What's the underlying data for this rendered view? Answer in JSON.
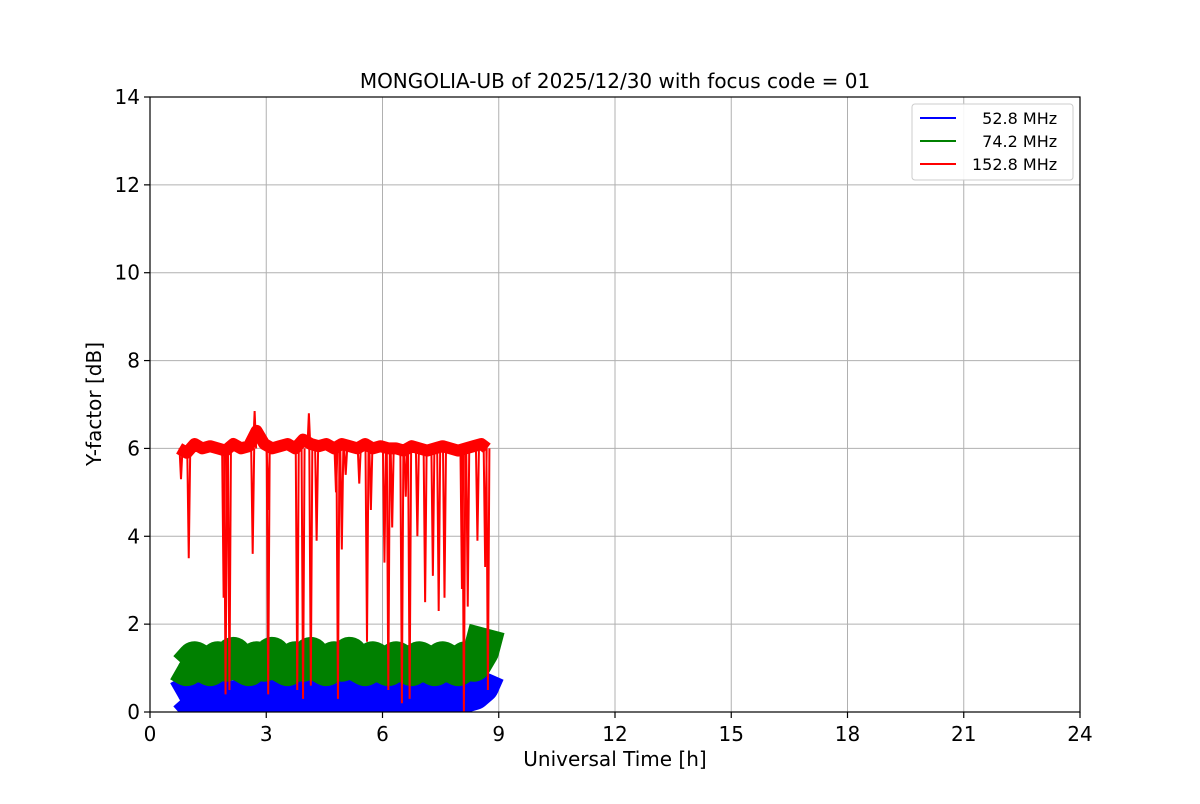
{
  "chart_data": {
    "type": "line",
    "title": "MONGOLIA-UB of 2025/12/30 with focus code = 01",
    "xlabel": "Universal Time [h]",
    "ylabel": "Y-factor [dB]",
    "xlim": [
      0,
      24
    ],
    "ylim": [
      0,
      14
    ],
    "xticks": [
      0,
      3,
      6,
      9,
      12,
      15,
      18,
      21,
      24
    ],
    "yticks": [
      0,
      2,
      4,
      6,
      8,
      10,
      12,
      14
    ],
    "xtick_labels": [
      "0",
      "3",
      "6",
      "9",
      "12",
      "15",
      "18",
      "21",
      "24"
    ],
    "ytick_labels": [
      "0",
      "2",
      "4",
      "6",
      "8",
      "10",
      "12",
      "14"
    ],
    "grid": true,
    "legend_position": "top-right",
    "series": [
      {
        "name": "  52.8 MHz",
        "color": "#0000ff",
        "x": [
          0.75,
          0.95,
          1.15,
          1.35,
          1.55,
          1.75,
          1.95,
          2.15,
          2.35,
          2.55,
          2.75,
          2.95,
          3.15,
          3.35,
          3.55,
          3.75,
          3.95,
          4.15,
          4.35,
          4.55,
          4.75,
          4.95,
          5.15,
          5.35,
          5.55,
          5.75,
          5.95,
          6.15,
          6.35,
          6.55,
          6.75,
          6.95,
          7.15,
          7.35,
          7.55,
          7.75,
          7.95,
          8.15,
          8.35,
          8.55,
          8.7
        ],
        "y": [
          0.3,
          0.4,
          0.2,
          0.35,
          0.3,
          0.4,
          0.3,
          0.3,
          0.35,
          0.3,
          0.4,
          0.3,
          0.35,
          0.3,
          0.4,
          0.35,
          0.3,
          0.4,
          0.3,
          0.35,
          0.3,
          0.4,
          0.35,
          0.3,
          0.4,
          0.3,
          0.35,
          0.3,
          0.4,
          0.3,
          0.35,
          0.3,
          0.4,
          0.35,
          0.3,
          0.4,
          0.35,
          0.4,
          0.45,
          0.6,
          0.9
        ]
      },
      {
        "name": "  74.2 MHz",
        "color": "#008000",
        "x": [
          0.75,
          0.95,
          1.15,
          1.35,
          1.55,
          1.75,
          1.95,
          2.15,
          2.35,
          2.55,
          2.75,
          2.95,
          3.15,
          3.35,
          3.55,
          3.75,
          3.95,
          4.15,
          4.35,
          4.55,
          4.75,
          4.95,
          5.15,
          5.35,
          5.55,
          5.75,
          5.95,
          6.15,
          6.35,
          6.55,
          6.75,
          6.95,
          7.15,
          7.35,
          7.55,
          7.75,
          7.95,
          8.15,
          8.35,
          8.55,
          8.7
        ],
        "y": [
          1.1,
          1.0,
          1.2,
          1.1,
          1.0,
          1.2,
          1.1,
          1.3,
          1.1,
          1.0,
          1.2,
          1.1,
          1.3,
          1.1,
          1.0,
          1.2,
          1.1,
          1.3,
          1.1,
          1.0,
          1.2,
          1.1,
          1.3,
          1.1,
          1.0,
          1.2,
          1.1,
          1.0,
          1.2,
          1.1,
          1.0,
          1.2,
          1.1,
          1.0,
          1.2,
          1.1,
          1.0,
          1.2,
          1.1,
          1.4,
          1.9
        ]
      },
      {
        "name": "152.8 MHz",
        "color": "#ff0000",
        "x": [
          0.75,
          0.95,
          1.15,
          1.35,
          1.55,
          1.75,
          1.95,
          2.15,
          2.35,
          2.55,
          2.75,
          2.95,
          3.15,
          3.35,
          3.55,
          3.75,
          3.95,
          4.15,
          4.35,
          4.55,
          4.75,
          4.95,
          5.15,
          5.35,
          5.55,
          5.75,
          5.95,
          6.15,
          6.35,
          6.55,
          6.75,
          6.95,
          7.15,
          7.35,
          7.55,
          7.75,
          7.95,
          8.15,
          8.35,
          8.55,
          8.7
        ],
        "y": [
          6.0,
          5.9,
          6.1,
          6.0,
          6.05,
          6.0,
          5.95,
          6.1,
          6.0,
          6.05,
          6.4,
          6.1,
          6.0,
          6.05,
          6.1,
          6.0,
          6.2,
          6.1,
          6.05,
          6.1,
          6.0,
          6.1,
          6.05,
          6.0,
          6.1,
          6.0,
          6.05,
          6.0,
          6.0,
          5.95,
          6.05,
          6.0,
          5.95,
          6.0,
          6.05,
          6.0,
          5.95,
          6.0,
          6.05,
          6.1,
          6.0
        ]
      }
    ],
    "spikes": [
      {
        "series": 2,
        "x": 0.8,
        "y": 5.3
      },
      {
        "series": 2,
        "x": 1.0,
        "y": 3.5
      },
      {
        "series": 2,
        "x": 1.9,
        "y": 2.6
      },
      {
        "series": 2,
        "x": 1.95,
        "y": 0.4
      },
      {
        "series": 2,
        "x": 2.05,
        "y": 0.5
      },
      {
        "series": 2,
        "x": 2.65,
        "y": 3.6
      },
      {
        "series": 2,
        "x": 2.7,
        "y": 6.85
      },
      {
        "series": 2,
        "x": 3.05,
        "y": 0.4
      },
      {
        "series": 2,
        "x": 3.05,
        "y": 4.6
      },
      {
        "series": 2,
        "x": 3.8,
        "y": 0.5
      },
      {
        "series": 2,
        "x": 3.95,
        "y": 0.3
      },
      {
        "series": 2,
        "x": 4.1,
        "y": 6.8
      },
      {
        "series": 2,
        "x": 4.15,
        "y": 0.6
      },
      {
        "series": 2,
        "x": 4.3,
        "y": 3.9
      },
      {
        "series": 2,
        "x": 4.8,
        "y": 5.0
      },
      {
        "series": 2,
        "x": 4.85,
        "y": 0.3
      },
      {
        "series": 2,
        "x": 4.95,
        "y": 3.7
      },
      {
        "series": 2,
        "x": 5.05,
        "y": 5.4
      },
      {
        "series": 2,
        "x": 5.4,
        "y": 5.2
      },
      {
        "series": 2,
        "x": 5.6,
        "y": 1.6
      },
      {
        "series": 2,
        "x": 5.7,
        "y": 4.6
      },
      {
        "series": 2,
        "x": 6.05,
        "y": 3.4
      },
      {
        "series": 2,
        "x": 6.15,
        "y": 0.5
      },
      {
        "series": 2,
        "x": 6.25,
        "y": 4.2
      },
      {
        "series": 2,
        "x": 6.5,
        "y": 0.2
      },
      {
        "series": 2,
        "x": 6.6,
        "y": 4.9
      },
      {
        "series": 2,
        "x": 6.7,
        "y": 0.3
      },
      {
        "series": 2,
        "x": 6.9,
        "y": 4.0
      },
      {
        "series": 2,
        "x": 7.1,
        "y": 2.5
      },
      {
        "series": 2,
        "x": 7.3,
        "y": 3.1
      },
      {
        "series": 2,
        "x": 7.45,
        "y": 2.3
      },
      {
        "series": 2,
        "x": 7.6,
        "y": 2.6
      },
      {
        "series": 2,
        "x": 8.05,
        "y": 2.8
      },
      {
        "series": 2,
        "x": 8.1,
        "y": 0.0
      },
      {
        "series": 2,
        "x": 8.2,
        "y": 2.4
      },
      {
        "series": 2,
        "x": 8.45,
        "y": 3.9
      },
      {
        "series": 2,
        "x": 8.65,
        "y": 3.3
      },
      {
        "series": 2,
        "x": 8.72,
        "y": 0.5
      }
    ]
  }
}
